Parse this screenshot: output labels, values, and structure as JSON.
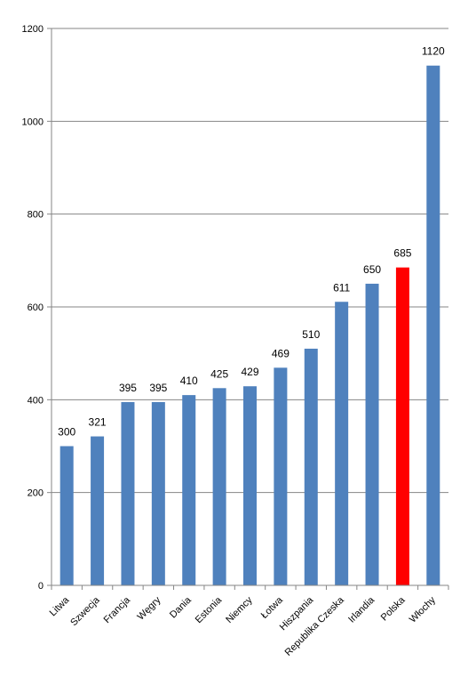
{
  "chart_data": {
    "type": "bar",
    "title": "",
    "xlabel": "",
    "ylabel": "",
    "ylim": [
      0,
      1200
    ],
    "yticks": [
      0,
      200,
      400,
      600,
      800,
      1000,
      1200
    ],
    "grid": true,
    "legend": "none",
    "categories": [
      "Litwa",
      "Szwecja",
      "Francja",
      "Węgry",
      "Dania",
      "Estonia",
      "Niemcy",
      "Łotwa",
      "Hiszpania",
      "Republika Czeska",
      "Irlandia",
      "Polska",
      "Włochy"
    ],
    "values": [
      300,
      321,
      395,
      395,
      410,
      425,
      429,
      469,
      510,
      611,
      650,
      685,
      1120
    ],
    "data_labels": [
      "300",
      "321",
      "395",
      "395",
      "410",
      "425",
      "429",
      "469",
      "510",
      "611",
      "650",
      "685",
      "1120"
    ],
    "ytick_labels": [
      "0",
      "200",
      "400",
      "600",
      "800",
      "1000",
      "1200"
    ],
    "colors": {
      "bar": "#4f81bd",
      "highlight": "#ff0000",
      "grid": "#868686",
      "axis": "#868686"
    },
    "highlight_category": "Polska"
  }
}
